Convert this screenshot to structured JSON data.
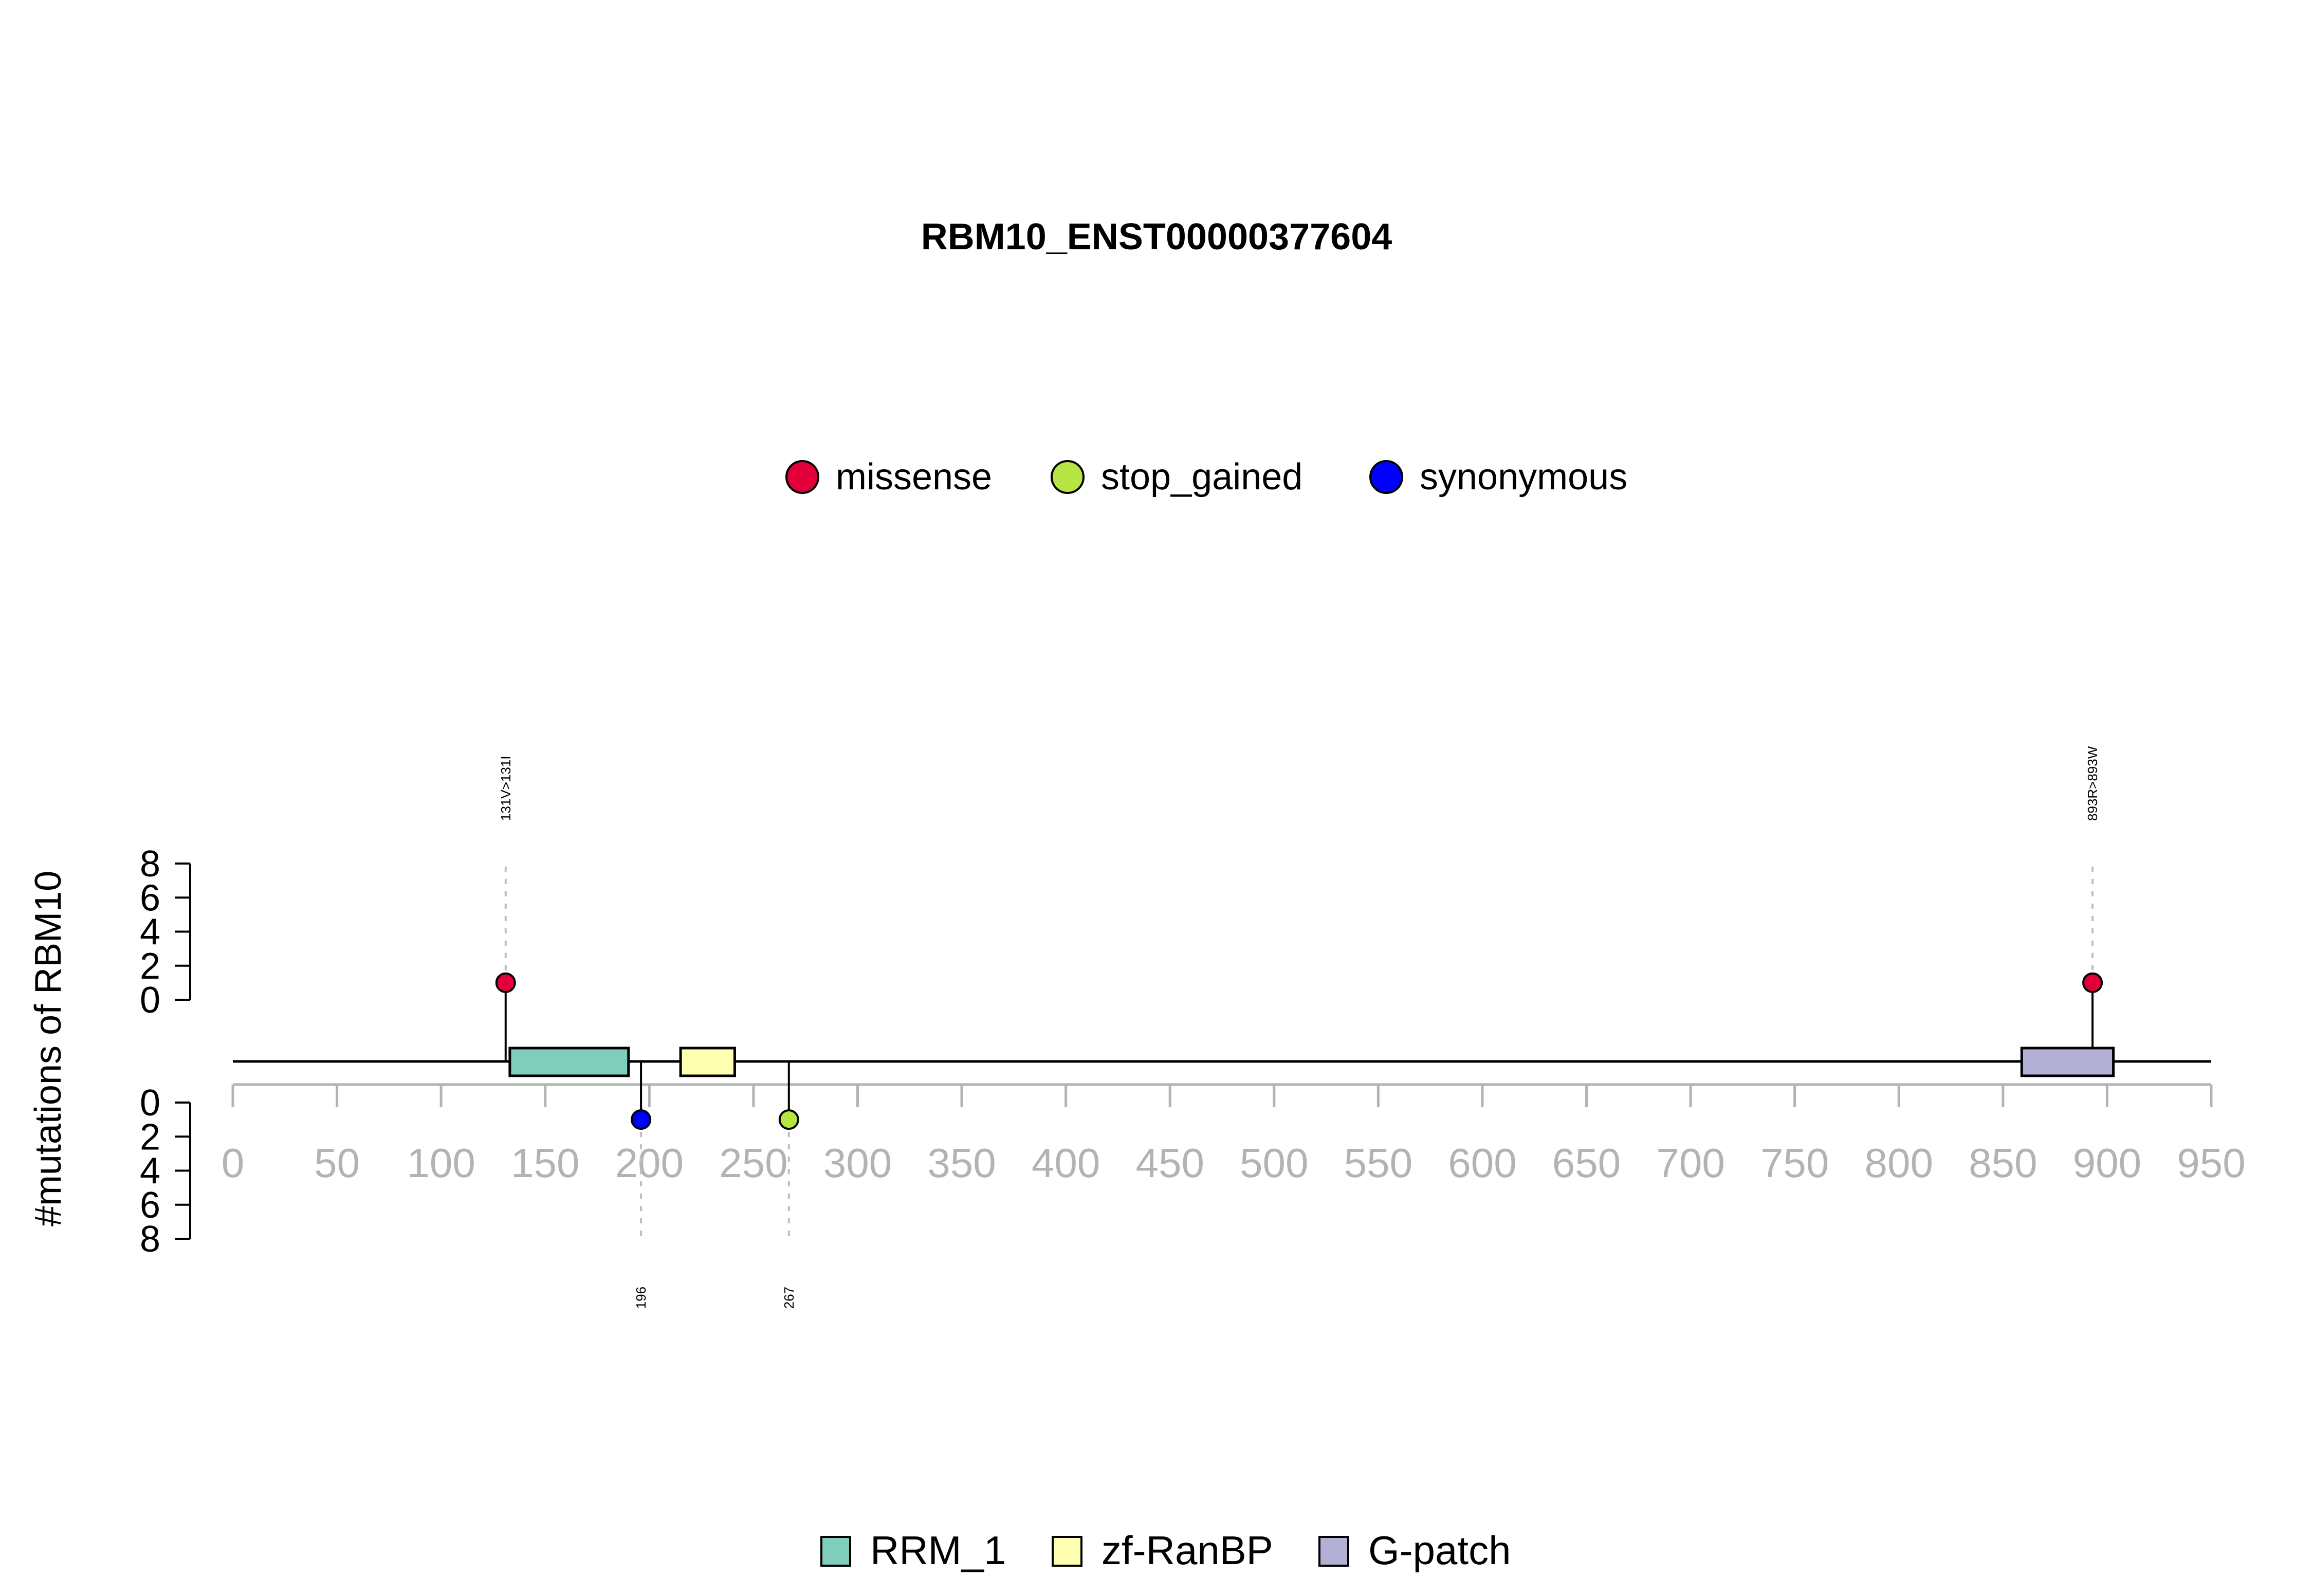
{
  "chart_data": {
    "type": "lollipop",
    "title": "RBM10_ENST00000377604",
    "ylabel": "#mutations of RBM10",
    "xlim": [
      0,
      950
    ],
    "x_ticks": [
      0,
      50,
      100,
      150,
      200,
      250,
      300,
      350,
      400,
      450,
      500,
      550,
      600,
      650,
      700,
      750,
      800,
      850,
      900,
      950
    ],
    "y_ticks_top": [
      0,
      2,
      4,
      6,
      8
    ],
    "y_ticks_bottom": [
      0,
      2,
      4,
      6,
      8
    ],
    "ylim": [
      0,
      8
    ],
    "protein_length": 950,
    "mutation_legend": [
      {
        "name": "missense",
        "color": "#e3003a"
      },
      {
        "name": "stop_gained",
        "color": "#b5e443"
      },
      {
        "name": "synonymous",
        "color": "#0000ff"
      }
    ],
    "mutations": [
      {
        "position": 131,
        "count": 1,
        "type": "missense",
        "label": "131V>131I",
        "side": "top"
      },
      {
        "position": 893,
        "count": 1,
        "type": "missense",
        "label": "893R>893W",
        "side": "top"
      },
      {
        "position": 196,
        "count": 1,
        "type": "synonymous",
        "label": "196",
        "side": "bottom"
      },
      {
        "position": 267,
        "count": 1,
        "type": "stop_gained",
        "label": "267",
        "side": "bottom"
      }
    ],
    "domains": [
      {
        "name": "RRM_1",
        "start": 133,
        "end": 190,
        "color": "#7fcdbb"
      },
      {
        "name": "zf-RanBP",
        "start": 215,
        "end": 241,
        "color": "#ffffb2"
      },
      {
        "name": "G-patch",
        "start": 859,
        "end": 903,
        "color": "#b3b0d5"
      }
    ]
  }
}
